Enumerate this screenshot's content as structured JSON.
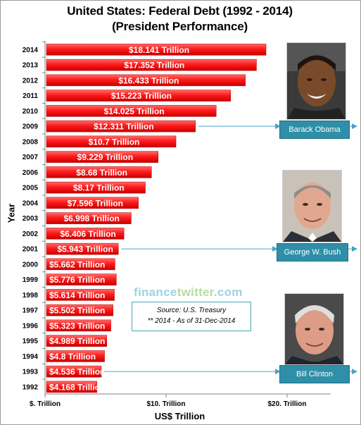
{
  "chart_data": {
    "type": "bar",
    "orientation": "horizontal",
    "title": "United States: Federal Debt (1992 - 2014)",
    "subtitle": "(President Performance)",
    "xlabel": "US$ Trillion",
    "ylabel": "Year",
    "xlim": [
      0,
      25
    ],
    "xticks": [
      {
        "value": 0,
        "label": "$. Trillion"
      },
      {
        "value": 10,
        "label": "$10. Trillion"
      },
      {
        "value": 20,
        "label": "$20. Trillion"
      }
    ],
    "grid": false,
    "bar_color": "#ff1a1a",
    "categories": [
      "2014",
      "2013",
      "2012",
      "2011",
      "2010",
      "2009",
      "2008",
      "2007",
      "2006",
      "2005",
      "2004",
      "2003",
      "2002",
      "2001",
      "2000",
      "1999",
      "1998",
      "1997",
      "1996",
      "1995",
      "1994",
      "1993",
      "1992"
    ],
    "values": [
      18.141,
      17.352,
      16.433,
      15.223,
      14.025,
      12.311,
      10.7,
      9.229,
      8.68,
      8.17,
      7.596,
      6.998,
      6.406,
      5.943,
      5.662,
      5.776,
      5.614,
      5.502,
      5.323,
      4.989,
      4.8,
      4.536,
      4.168
    ],
    "value_labels": [
      "$18.141 Trillion",
      "$17.352 Trillion",
      "$16.433 Trillion",
      "$15.223 Trillion",
      "$14.025 Trillion",
      "$12.311 Trillion",
      "$10.7 Trillion",
      "$9.229 Trillion",
      "$8.68 Trillion",
      "$8.17 Trillion",
      "$7.596 Trillion",
      "$6.998 Trillion",
      "$6.406 Trillion",
      "$5.943 Trillion",
      "$5.662 Trillion",
      "$5.776 Trillion",
      "$5.614 Trillion",
      "$5.502 Trillion",
      "$5.323 Trillion",
      "$4.989 Trillion",
      "$4.8 Trillion",
      "$4.536 Trillion",
      "$4.168 Trillion"
    ],
    "annotations": [
      {
        "text": "Barack Obama",
        "year": "2009"
      },
      {
        "text": "George W. Bush",
        "year": "2001"
      },
      {
        "text": "Bill Clinton",
        "year": "1993"
      }
    ]
  },
  "watermark": {
    "part1": "finance",
    "part2": "twitter",
    "part3": ".com"
  },
  "source": {
    "line1": "Source: U.S. Treasury",
    "line2": "** 2014 - As of 31-Dec-2014"
  },
  "photos": [
    {
      "icon": "obama-portrait-icon"
    },
    {
      "icon": "bush-portrait-icon"
    },
    {
      "icon": "clinton-portrait-icon"
    }
  ],
  "colors": {
    "bar": "#ff1a1a",
    "callout": "#2f8fa8",
    "arrow": "#4aa3c7"
  }
}
